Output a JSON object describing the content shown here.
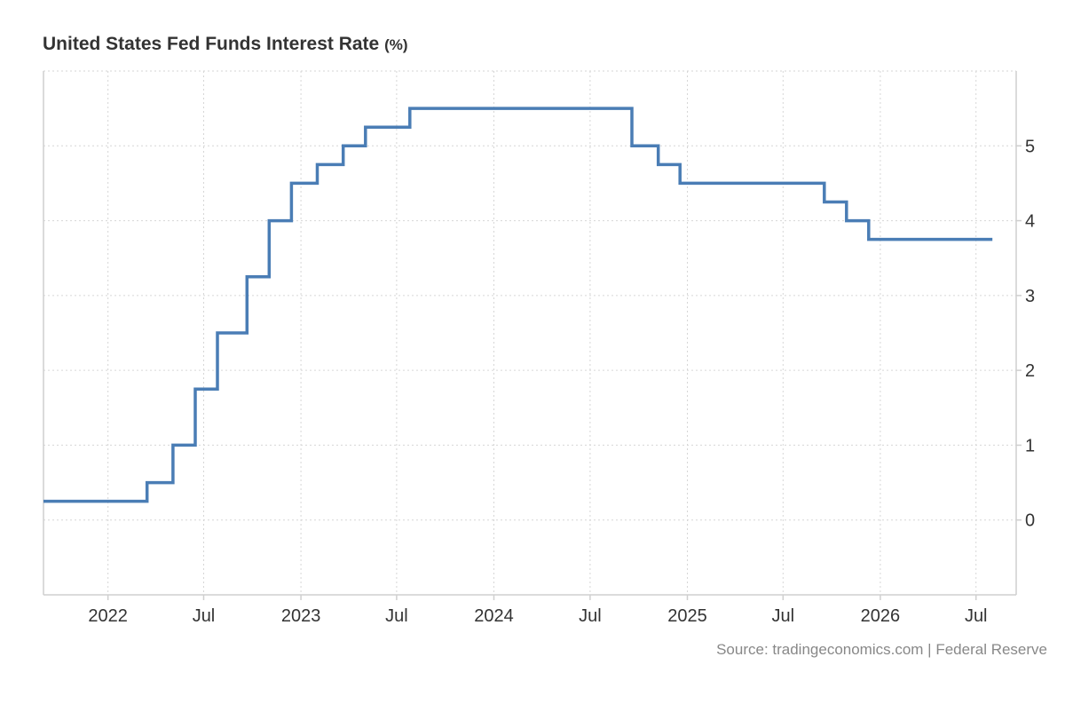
{
  "header": {
    "title": "United States Fed Funds Interest Rate",
    "unit": "(%)"
  },
  "footer": {
    "source": "Source: tradingeconomics.com | Federal Reserve"
  },
  "colors": {
    "series": "#4a7db5"
  },
  "chart_data": {
    "type": "line",
    "title": "United States Fed Funds Interest Rate",
    "unit": "%",
    "step": true,
    "grid": true,
    "xlim": [
      "2021-09-01",
      "2026-09-15"
    ],
    "ylim": [
      -1,
      6
    ],
    "y_ticks": [
      0,
      1,
      2,
      3,
      4,
      5
    ],
    "x_ticks": [
      {
        "date": "2022-01-01",
        "label": "2022"
      },
      {
        "date": "2022-07-01",
        "label": "Jul"
      },
      {
        "date": "2023-01-01",
        "label": "2023"
      },
      {
        "date": "2023-07-01",
        "label": "Jul"
      },
      {
        "date": "2024-01-01",
        "label": "2024"
      },
      {
        "date": "2024-07-01",
        "label": "Jul"
      },
      {
        "date": "2025-01-01",
        "label": "2025"
      },
      {
        "date": "2025-07-01",
        "label": "Jul"
      },
      {
        "date": "2026-01-01",
        "label": "2026"
      },
      {
        "date": "2026-07-01",
        "label": "Jul"
      }
    ],
    "series": [
      {
        "name": "Fed Funds Rate",
        "points": [
          {
            "x": "2021-09-01",
            "y": 0.25
          },
          {
            "x": "2022-03-16",
            "y": 0.5
          },
          {
            "x": "2022-05-04",
            "y": 1.0
          },
          {
            "x": "2022-06-15",
            "y": 1.75
          },
          {
            "x": "2022-07-27",
            "y": 2.5
          },
          {
            "x": "2022-09-21",
            "y": 3.25
          },
          {
            "x": "2022-11-02",
            "y": 4.0
          },
          {
            "x": "2022-12-14",
            "y": 4.5
          },
          {
            "x": "2023-02-01",
            "y": 4.75
          },
          {
            "x": "2023-03-22",
            "y": 5.0
          },
          {
            "x": "2023-05-03",
            "y": 5.25
          },
          {
            "x": "2023-07-26",
            "y": 5.5
          },
          {
            "x": "2024-09-18",
            "y": 5.0
          },
          {
            "x": "2024-11-07",
            "y": 4.75
          },
          {
            "x": "2024-12-18",
            "y": 4.5
          },
          {
            "x": "2025-09-17",
            "y": 4.25
          },
          {
            "x": "2025-10-29",
            "y": 4.0
          },
          {
            "x": "2025-12-10",
            "y": 3.75
          },
          {
            "x": "2026-08-01",
            "y": 3.75
          }
        ]
      }
    ]
  }
}
